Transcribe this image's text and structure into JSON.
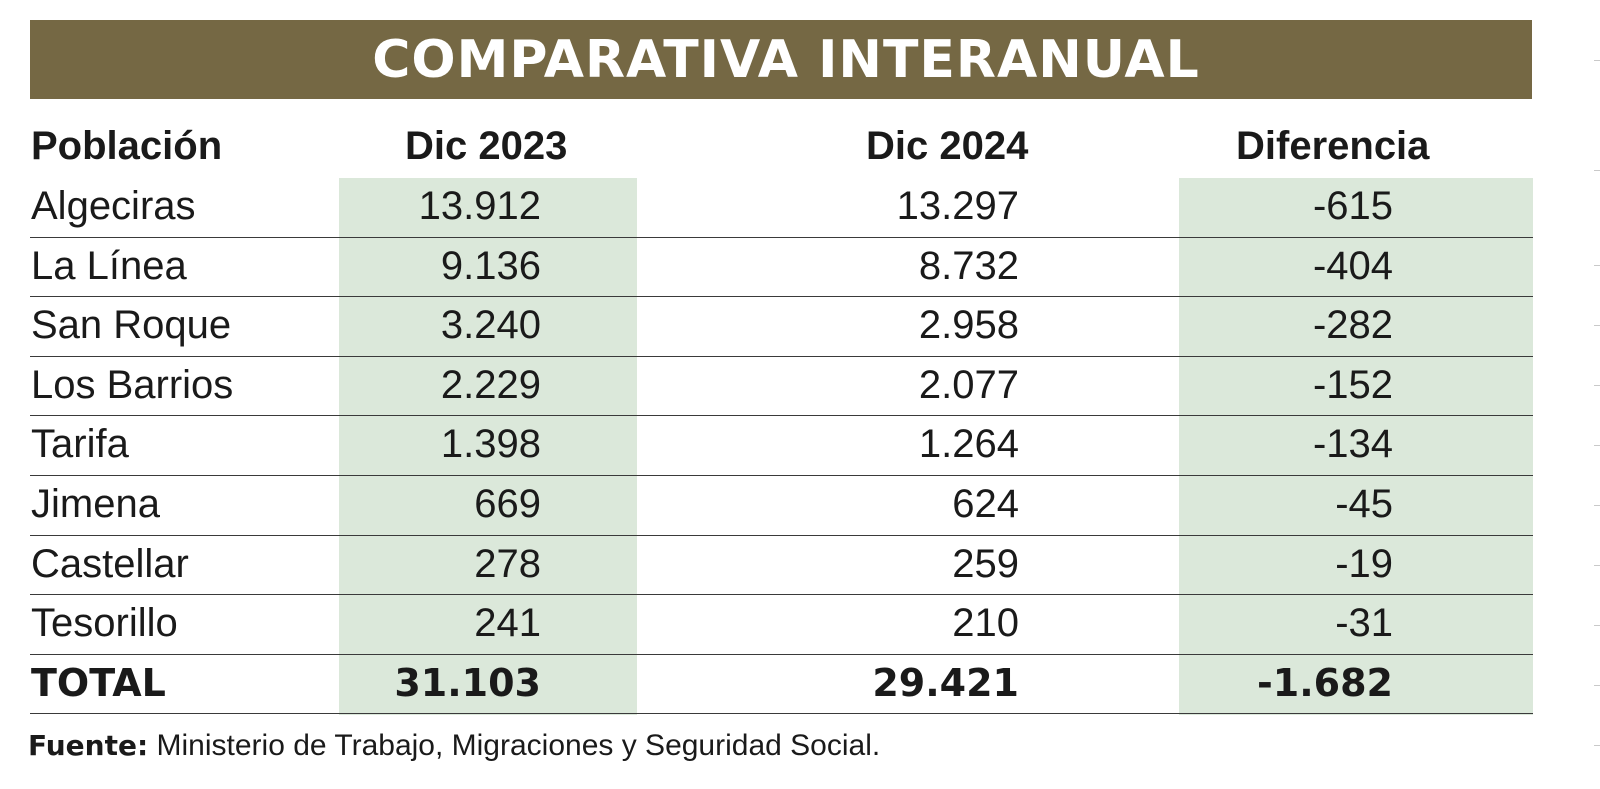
{
  "banner": {
    "title": "COMPARATIVA INTERANUAL",
    "color": "#756844"
  },
  "chart_data": {
    "type": "table",
    "title": "COMPARATIVA INTERANUAL",
    "columns": [
      "Población",
      "Dic 2023",
      "Dic 2024",
      "Diferencia"
    ],
    "rows": [
      [
        "Algeciras",
        "13.912",
        "13.297",
        "-615"
      ],
      [
        "La Línea",
        "9.136",
        "8.732",
        "-404"
      ],
      [
        "San Roque",
        "3.240",
        "2.958",
        "-282"
      ],
      [
        "Los Barrios",
        "2.229",
        "2.077",
        "-152"
      ],
      [
        "Tarifa",
        "1.398",
        "1.264",
        "-134"
      ],
      [
        "Jimena",
        "669",
        "624",
        "-45"
      ],
      [
        "Castellar",
        "278",
        "259",
        "-19"
      ],
      [
        "Tesorillo",
        "241",
        "210",
        "-31"
      ]
    ],
    "total": [
      "TOTAL",
      "31.103",
      "29.421",
      "-1.682"
    ],
    "highlight_color": "#dbe8da"
  },
  "source": {
    "label": "Fuente:",
    "text": "Ministerio de Trabajo, Migraciones y Seguridad Social."
  }
}
